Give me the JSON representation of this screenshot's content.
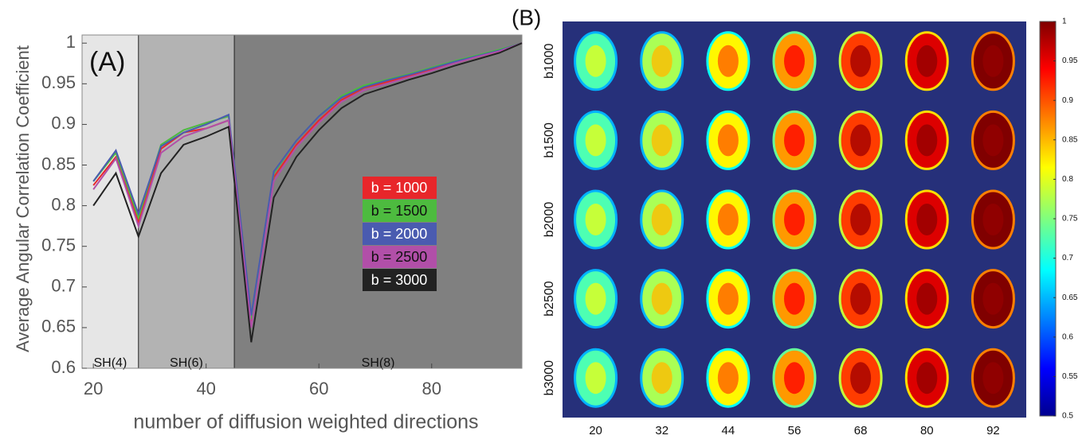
{
  "chart_data": [
    {
      "type": "line",
      "panel_label": "(A)",
      "y_label": "Average Angular Correlation Coefficient",
      "x_label": "number of diffusion weighted directions",
      "x": [
        20,
        24,
        28,
        32,
        36,
        40,
        44,
        48,
        52,
        56,
        60,
        64,
        68,
        72,
        76,
        80,
        84,
        88,
        92,
        96
      ],
      "xlim": [
        18,
        96
      ],
      "xticks": [
        20,
        40,
        60,
        80
      ],
      "ylim": [
        0.6,
        1.01
      ],
      "yticks": [
        0.6,
        0.65,
        0.7,
        0.75,
        0.8,
        0.85,
        0.9,
        0.95,
        1
      ],
      "regions": [
        {
          "label": "SH(4)",
          "start": 18,
          "end": 28,
          "color": "#e6e6e6"
        },
        {
          "label": "SH(6)",
          "start": 28,
          "end": 45,
          "color": "#b3b3b3"
        },
        {
          "label": "SH(8)",
          "start": 45,
          "end": 96,
          "color": "#808080"
        }
      ],
      "legend": "center-right",
      "series": [
        {
          "name": "b = 1000",
          "color": "#e8262a",
          "values": [
            0.825,
            0.86,
            0.78,
            0.87,
            0.89,
            0.895,
            0.905,
            0.655,
            0.835,
            0.875,
            0.905,
            0.93,
            0.945,
            0.952,
            0.96,
            0.968,
            0.975,
            0.983,
            0.99,
            1
          ]
        },
        {
          "name": "b = 1500",
          "color": "#4dbb3f",
          "values": [
            0.83,
            0.865,
            0.785,
            0.875,
            0.893,
            0.902,
            0.91,
            0.66,
            0.84,
            0.88,
            0.91,
            0.935,
            0.948,
            0.955,
            0.962,
            0.97,
            0.978,
            0.985,
            0.992,
            1
          ]
        },
        {
          "name": "b = 2000",
          "color": "#4a5bb0",
          "values": [
            0.83,
            0.868,
            0.79,
            0.873,
            0.89,
            0.9,
            0.912,
            0.665,
            0.842,
            0.88,
            0.91,
            0.933,
            0.946,
            0.954,
            0.961,
            0.969,
            0.977,
            0.984,
            0.991,
            1
          ]
        },
        {
          "name": "b = 2500",
          "color": "#b14fa8",
          "values": [
            0.82,
            0.858,
            0.775,
            0.865,
            0.885,
            0.895,
            0.905,
            0.65,
            0.83,
            0.872,
            0.902,
            0.928,
            0.942,
            0.95,
            0.958,
            0.966,
            0.975,
            0.983,
            0.99,
            1
          ]
        },
        {
          "name": "b = 3000",
          "color": "#222222",
          "values": [
            0.8,
            0.84,
            0.762,
            0.84,
            0.875,
            0.885,
            0.897,
            0.632,
            0.81,
            0.86,
            0.893,
            0.92,
            0.937,
            0.946,
            0.955,
            0.963,
            0.972,
            0.98,
            0.988,
            1
          ]
        }
      ]
    },
    {
      "type": "image_grid",
      "panel_label": "(B)",
      "rows": [
        "b1000",
        "b1500",
        "b2000",
        "b2500",
        "b3000"
      ],
      "columns": [
        "20",
        "32",
        "44",
        "56",
        "68",
        "80",
        "92"
      ],
      "background": "#26307a",
      "colorbar": {
        "colormap": "jet",
        "ylim": [
          0.5,
          1
        ],
        "yticks": [
          0.5,
          0.55,
          0.6,
          0.65,
          0.7,
          0.75,
          0.8,
          0.85,
          0.9,
          0.95,
          1
        ]
      }
    }
  ]
}
